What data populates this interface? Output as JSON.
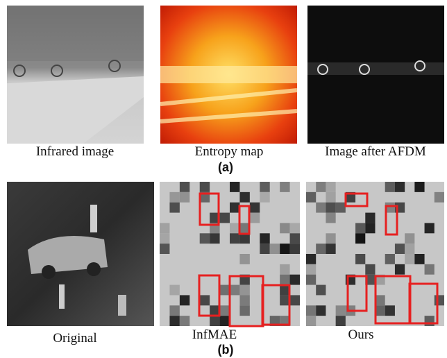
{
  "panel_a": {
    "captions": [
      "Infrared image",
      "Entropy map",
      "Image after AFDM"
    ],
    "label": "(a)"
  },
  "panel_b": {
    "captions": [
      "Original",
      "InfMAE",
      "Ours"
    ],
    "label": "(b)"
  }
}
